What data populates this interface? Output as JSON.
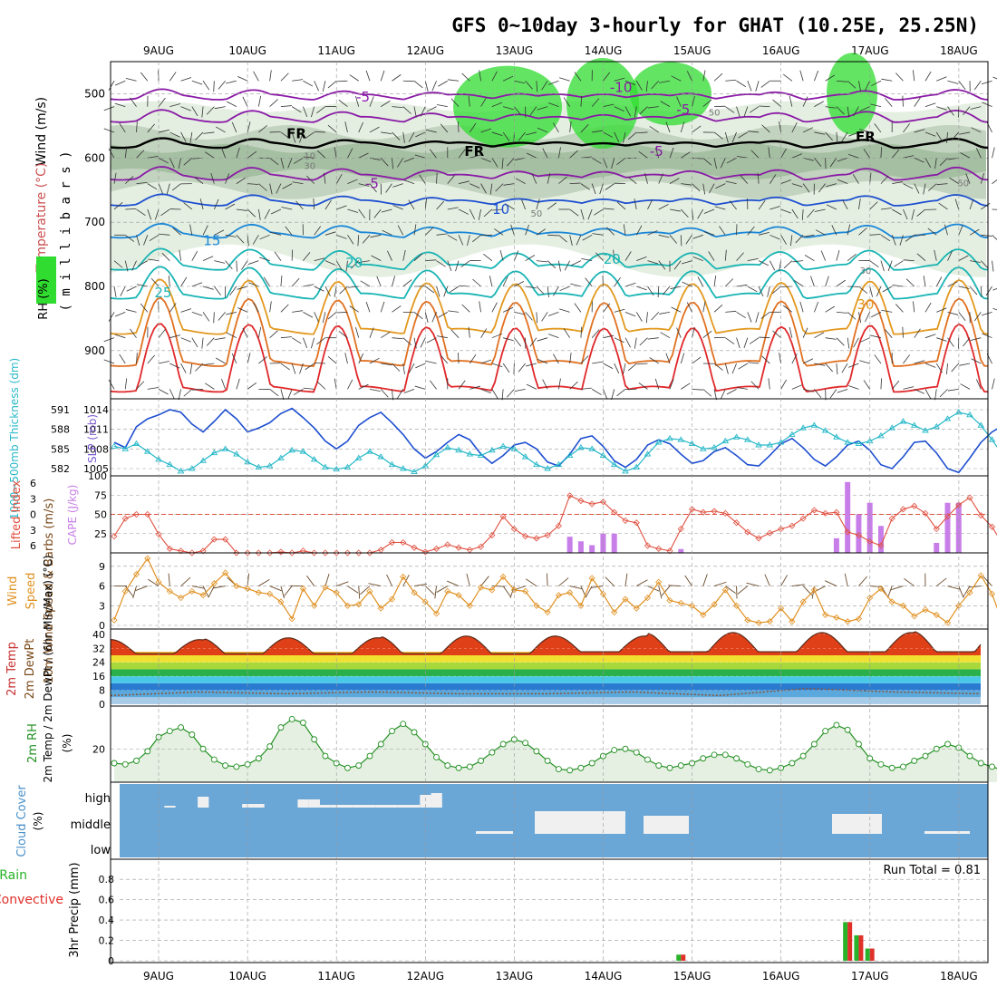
{
  "colors": {
    "grid": "#9a9a9a",
    "rh_light": "#e4efe1",
    "rh_mid": "#b9ccb7",
    "rh_dark": "#8eae8b",
    "rh_green": "#2fdc2f",
    "purple": "#8a1aa6",
    "blue": "#1e4fd0",
    "midblue": "#1a86d8",
    "teal": "#18b4b4",
    "orange": "#e2981e",
    "red": "#e0282a",
    "cyan": "#26b8c8",
    "cape": "#c87ee8",
    "li": "#e05040",
    "wind10": "#e09020",
    "barb10": "#6a4a2a",
    "rh2m": "#239023",
    "cloud": "#6aa6d6",
    "precip_green": "#28b428",
    "precip_red": "#e0302a"
  },
  "chart_data": [
    {
      "type": "heatmap",
      "title": "GFS 0~10day 3-hourly for GHAT (10.25E, 25.25N)",
      "xlabels": [
        "9AUG",
        "10AUG",
        "11AUG",
        "12AUG",
        "13AUG",
        "14AUG",
        "15AUG",
        "16AUG",
        "17AUG",
        "18AUG"
      ],
      "ylabel": "millibars",
      "yticks": [
        500,
        600,
        700,
        800,
        900
      ],
      "ylim": [
        450,
        975
      ],
      "legend": [
        "Wind (m/s)",
        "Temperature (°C)",
        "RH (%)"
      ],
      "contour_labels": [
        {
          "text": "-10",
          "x": 5.2,
          "p": 490
        },
        {
          "text": "-5",
          "x": 2.3,
          "p": 505
        },
        {
          "text": "-5",
          "x": 5.9,
          "p": 525
        },
        {
          "text": "-5",
          "x": 5.6,
          "p": 590
        },
        {
          "text": "-5",
          "x": 2.4,
          "p": 640
        },
        {
          "text": "FR",
          "x": 1.55,
          "p": 562
        },
        {
          "text": "FR",
          "x": 3.55,
          "p": 590
        },
        {
          "text": "FR",
          "x": 7.95,
          "p": 567
        },
        {
          "text": "10",
          "x": 3.85,
          "p": 680
        },
        {
          "text": "15",
          "x": 0.6,
          "p": 729
        },
        {
          "text": "20",
          "x": 2.2,
          "p": 763
        },
        {
          "text": "20",
          "x": 5.1,
          "p": 758
        },
        {
          "text": "25",
          "x": 0.05,
          "p": 810
        },
        {
          "text": "30",
          "x": 7.95,
          "p": 828
        },
        {
          "text": "50",
          "x": 6.25,
          "p": 527
        },
        {
          "text": "50",
          "x": 4.25,
          "p": 684
        },
        {
          "text": "50",
          "x": 9.05,
          "p": 637
        },
        {
          "text": "30",
          "x": 1.7,
          "p": 610
        },
        {
          "text": "30",
          "x": 7.95,
          "p": 773
        },
        {
          "text": "10",
          "x": 1.7,
          "p": 595
        }
      ]
    },
    {
      "type": "line",
      "ylabel_left": "1000~500mb Thickness (dm)",
      "ylabel_right": "SLP (mb)",
      "left_ticks": [
        582,
        585,
        588,
        591
      ],
      "right_ticks": [
        1005,
        1008,
        1011,
        1014
      ],
      "series": [
        {
          "name": "SLP (mb)",
          "axis": "right",
          "values": [
            1009.0,
            1008.2,
            1011.4,
            1012.6,
            1013.2,
            1014.0,
            1013.6,
            1011.8,
            1010.6,
            1012.2,
            1014.0,
            1012.6,
            1010.6,
            1011.2,
            1012.0,
            1013.4,
            1014.2,
            1012.8,
            1011.2,
            1009.2,
            1008.0,
            1009.2,
            1011.6,
            1012.8,
            1013.6,
            1012.0,
            1010.2,
            1008.0,
            1006.6,
            1007.6,
            1009.0,
            1010.2,
            1009.4,
            1007.2,
            1005.8,
            1007.0,
            1008.6,
            1009.0,
            1008.0,
            1006.0,
            1005.4,
            1007.2,
            1009.6,
            1010.0,
            1008.4,
            1006.2,
            1005.2,
            1006.4,
            1008.6,
            1009.4,
            1008.8,
            1007.2,
            1005.8,
            1006.2,
            1007.6,
            1008.2,
            1007.0,
            1005.6,
            1005.4,
            1007.0,
            1008.8,
            1009.6,
            1008.2,
            1006.4,
            1005.4,
            1006.8,
            1008.6,
            1009.2,
            1007.8,
            1005.6,
            1005.0,
            1006.8,
            1009.0,
            1009.2,
            1007.4,
            1005.0,
            1004.4,
            1006.6,
            1009.0,
            1010.6,
            1011.6
          ]
        },
        {
          "name": "Thickness (dm)",
          "axis": "left",
          "values": [
            585.4,
            585.0,
            585.8,
            584.6,
            583.4,
            582.6,
            581.6,
            582.0,
            583.2,
            584.4,
            585.0,
            584.2,
            583.0,
            582.2,
            582.4,
            583.6,
            584.8,
            584.6,
            583.4,
            582.2,
            581.9,
            582.2,
            583.6,
            584.6,
            583.8,
            582.6,
            582.0,
            581.5,
            582.4,
            584.1,
            585.2,
            584.8,
            584.2,
            584.0,
            584.8,
            585.4,
            585.0,
            583.8,
            582.6,
            582.0,
            582.6,
            584.0,
            585.2,
            585.0,
            584.0,
            582.6,
            581.6,
            582.2,
            584.2,
            586.0,
            586.6,
            586.4,
            585.8,
            585.0,
            585.2,
            586.2,
            586.8,
            586.4,
            585.6,
            585.6,
            586.0,
            587.2,
            588.2,
            588.6,
            587.8,
            586.8,
            586.0,
            585.8,
            586.2,
            587.0,
            588.2,
            589.2,
            588.6,
            587.8,
            588.4,
            589.6,
            590.6,
            590.2,
            588.6,
            586.4,
            584.0
          ]
        }
      ]
    },
    {
      "type": "bar",
      "ylabel_left": "Lifted Index",
      "ylabel_right": "CAPE (J/kg)",
      "li_ticks": [
        -6,
        -3,
        0,
        3,
        6
      ],
      "cape_ticks": [
        25,
        50,
        75,
        100
      ],
      "series": [
        {
          "name": "Lifted Index",
          "values": [
            4.2,
            0.8,
            0.0,
            0.0,
            3.8,
            6.6,
            7.0,
            7.4,
            7.0,
            4.8,
            4.8,
            7.4,
            8.0,
            8.2,
            8.2,
            7.2,
            7.4,
            7.0,
            7.8,
            7.8,
            8.2,
            8.4,
            8.0,
            7.8,
            6.8,
            5.4,
            5.4,
            6.4,
            7.2,
            6.6,
            5.8,
            6.4,
            6.8,
            6.2,
            4.0,
            0.4,
            2.8,
            4.2,
            4.6,
            4.0,
            2.2,
            -3.6,
            -2.6,
            -2.0,
            -2.4,
            -0.4,
            1.2,
            1.6,
            6.0,
            6.6,
            7.0,
            2.8,
            -1.0,
            -0.4,
            -0.6,
            -0.2,
            1.6,
            3.4,
            4.6,
            3.6,
            2.8,
            2.2,
            0.8,
            -0.8,
            -0.2,
            -0.4,
            3.4,
            4.0,
            5.2,
            6.0,
            0.8,
            -1.0,
            -1.6,
            -0.2,
            2.8,
            0.4,
            -1.8,
            -3.2,
            0.2,
            2.4,
            5.8
          ]
        },
        {
          "name": "CAPE (J/kg)",
          "values": [
            0,
            0,
            0,
            0,
            0,
            0,
            0,
            0,
            0,
            0,
            0,
            0,
            0,
            0,
            0,
            0,
            0,
            0,
            0,
            0,
            0,
            0,
            0,
            0,
            0,
            0,
            0,
            0,
            0,
            0,
            0,
            0,
            0,
            0,
            0,
            0,
            0,
            0,
            0,
            0,
            0,
            21,
            15,
            10,
            25,
            25,
            0,
            0,
            0,
            0,
            0,
            5,
            0,
            0,
            0,
            0,
            0,
            0,
            0,
            0,
            0,
            0,
            0,
            0,
            0,
            19,
            92,
            50,
            65,
            35,
            0,
            0,
            0,
            0,
            13,
            65,
            65,
            0,
            0,
            0,
            0
          ]
        }
      ]
    },
    {
      "type": "line",
      "ylabel": "10m Wind Speed & Barbs (m/s)",
      "yticks": [
        0,
        3,
        6,
        9
      ],
      "ylim": [
        0,
        10.5
      ],
      "series": [
        {
          "name": "10m Wind Speed",
          "values": [
            0.8,
            5.2,
            7.8,
            10.2,
            6.6,
            5.2,
            4.2,
            5.2,
            4.6,
            6.4,
            8.0,
            6.0,
            5.6,
            5.0,
            4.8,
            3.6,
            1.0,
            5.6,
            3.0,
            5.8,
            5.0,
            3.0,
            3.2,
            5.2,
            2.6,
            4.0,
            7.4,
            5.0,
            3.6,
            1.8,
            5.2,
            4.6,
            3.0,
            5.8,
            5.4,
            7.4,
            5.4,
            5.2,
            3.0,
            2.0,
            4.6,
            5.0,
            3.0,
            7.2,
            4.8,
            2.0,
            4.0,
            2.6,
            4.2,
            6.6,
            3.8,
            3.4,
            3.0,
            1.6,
            3.2,
            5.4,
            3.0,
            0.8,
            0.4,
            0.6,
            2.6,
            0.6,
            3.6,
            5.4,
            1.6,
            1.2,
            0.6,
            1.0,
            4.2,
            5.6,
            3.6,
            3.0,
            1.4,
            2.4,
            1.6,
            0.4,
            3.0,
            5.0,
            7.6,
            4.8,
            0.2
          ]
        }
      ]
    },
    {
      "type": "area",
      "ylabel": "2m Temp / 2m DewPt / (6hr Min/Max) (°C)",
      "yticks": [
        0,
        8,
        16,
        24,
        32,
        40
      ],
      "ylim": [
        0,
        42
      ],
      "series": [
        {
          "name": "2m Temp (daily min)",
          "values": [
            29,
            29,
            29,
            29,
            29,
            30,
            30,
            30,
            30,
            30
          ]
        },
        {
          "name": "2m Temp (daily max)",
          "values": [
            37,
            38,
            38,
            39,
            39,
            39,
            41,
            41,
            41,
            42
          ]
        },
        {
          "name": "2m DewPt",
          "values": [
            5,
            7,
            6,
            7,
            6,
            6,
            7,
            5,
            9,
            7,
            6
          ]
        }
      ]
    },
    {
      "type": "line",
      "ylabel": "2m RH (%)",
      "yticks": [
        20
      ],
      "ylim": [
        6,
        38
      ],
      "series": [
        {
          "name": "2m RH",
          "values": [
            14,
            13.5,
            15,
            19,
            25,
            27.5,
            29,
            26,
            20,
            15.5,
            13,
            12.5,
            13.5,
            16,
            21,
            29,
            32.5,
            31,
            24,
            17,
            14,
            12,
            13,
            17,
            22,
            27.5,
            30.5,
            27,
            22,
            16.5,
            13,
            12,
            12.5,
            15,
            18.5,
            22,
            24,
            22.5,
            19,
            15,
            11.5,
            11,
            12,
            14,
            17,
            19.5,
            20,
            18.5,
            15.5,
            13,
            12,
            13,
            14,
            16,
            17.5,
            17.5,
            16,
            13.5,
            11.5,
            11,
            12,
            14,
            17,
            22,
            27.5,
            30,
            28,
            22,
            16,
            13.5,
            12,
            12.5,
            15,
            17,
            20,
            22,
            20.5,
            17,
            14,
            12.5,
            11
          ]
        }
      ]
    },
    {
      "type": "heatmap",
      "ylabel": "Cloud Cover (%)",
      "levels": [
        "high",
        "middle",
        "low"
      ],
      "series": [
        {
          "name": "high",
          "values": [
            0,
            0,
            0,
            0,
            0,
            2,
            0,
            0,
            12,
            0,
            0,
            0,
            4,
            4,
            0,
            0,
            0,
            9,
            9,
            3,
            3,
            3,
            3,
            3,
            3,
            3,
            3,
            3,
            14,
            16,
            0,
            0,
            0,
            0,
            0,
            0,
            0,
            0,
            0,
            0,
            0,
            0,
            0,
            0,
            0,
            0,
            0,
            0,
            0,
            0,
            0,
            0,
            0,
            0,
            0,
            0,
            0,
            0,
            0,
            0,
            0,
            0,
            0,
            0,
            0,
            0,
            0,
            0,
            0,
            0,
            0,
            0,
            0,
            0,
            0,
            0,
            0,
            0,
            0,
            0,
            0
          ]
        },
        {
          "name": "middle",
          "values": [
            0,
            0,
            0,
            0,
            0,
            0,
            0,
            0,
            0,
            0,
            0,
            0,
            0,
            0,
            0,
            0,
            0,
            0,
            0,
            0,
            0,
            0,
            0,
            0,
            0,
            0,
            0,
            0,
            0,
            0,
            0,
            0,
            0,
            0,
            0,
            0,
            0,
            0,
            0,
            0,
            0,
            0,
            0,
            0,
            0,
            0,
            0,
            0,
            0,
            0,
            0,
            0,
            0,
            0,
            0,
            0,
            0,
            0,
            0,
            0,
            0,
            0,
            0,
            0,
            0,
            0,
            0,
            0,
            0,
            0,
            0,
            0,
            0,
            0,
            0,
            0,
            0,
            0,
            0,
            0,
            0
          ]
        }
      ]
    },
    {
      "type": "bar",
      "ylabel": "3hr Precip (mm)",
      "legend": [
        "Total / Rain",
        "Convective"
      ],
      "yticks": [
        0,
        0.2,
        0.4,
        0.6,
        0.8
      ],
      "ylim": [
        0,
        0.98
      ],
      "run_total_label": "Run Total = 0.81",
      "series": [
        {
          "name": "Total / Rain",
          "values": [
            0,
            0,
            0,
            0,
            0,
            0,
            0,
            0,
            0,
            0,
            0,
            0,
            0,
            0,
            0,
            0,
            0,
            0,
            0,
            0,
            0,
            0,
            0,
            0,
            0,
            0,
            0,
            0,
            0,
            0,
            0,
            0,
            0,
            0,
            0,
            0,
            0,
            0,
            0,
            0,
            0,
            0,
            0,
            0,
            0,
            0,
            0,
            0,
            0,
            0,
            0,
            0.06,
            0,
            0,
            0,
            0,
            0,
            0,
            0,
            0,
            0,
            0,
            0,
            0,
            0,
            0,
            0.38,
            0.25,
            0.12,
            0,
            0,
            0,
            0,
            0,
            0,
            0,
            0,
            0,
            0,
            0,
            0
          ]
        },
        {
          "name": "Convective",
          "values": [
            0,
            0,
            0,
            0,
            0,
            0,
            0,
            0,
            0,
            0,
            0,
            0,
            0,
            0,
            0,
            0,
            0,
            0,
            0,
            0,
            0,
            0,
            0,
            0,
            0,
            0,
            0,
            0,
            0,
            0,
            0,
            0,
            0,
            0,
            0,
            0,
            0,
            0,
            0,
            0,
            0,
            0,
            0,
            0,
            0,
            0,
            0,
            0,
            0,
            0,
            0,
            0.06,
            0,
            0,
            0,
            0,
            0,
            0,
            0,
            0,
            0,
            0,
            0,
            0,
            0,
            0,
            0.38,
            0.25,
            0.12,
            0,
            0,
            0,
            0,
            0,
            0,
            0,
            0,
            0,
            0,
            0,
            0
          ]
        }
      ]
    }
  ]
}
